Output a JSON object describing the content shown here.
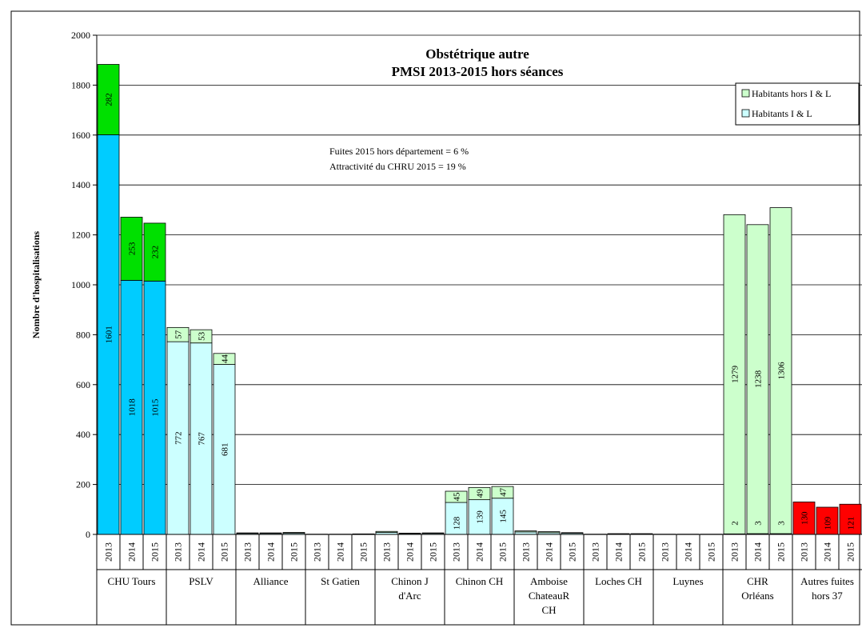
{
  "chart_data": {
    "type": "bar",
    "stacked": true,
    "title_line1": "Obstétrique autre",
    "title_line2": "PMSI 2013-2015 hors séances",
    "ylabel": "Nombre d'hospitalisations",
    "ylim": [
      0,
      2000
    ],
    "yticks": [
      "0",
      "200",
      "400",
      "600",
      "800",
      "1000",
      "1200",
      "1400",
      "1600",
      "1800",
      "2000"
    ],
    "annotation_line1": "Fuites 2015 hors département = 6 %",
    "annotation_line2": "Attractivité du CHRU 2015 = 19 %",
    "legend": [
      {
        "label": "Habitants hors I & L",
        "color": "#ccffcc"
      },
      {
        "label": "Habitants I & L",
        "color": "#ccffff"
      }
    ],
    "years": [
      "2013",
      "2014",
      "2015"
    ],
    "groups": [
      {
        "name_lines": [
          "CHU Tours"
        ],
        "bottom_color": "#00ccff",
        "top_color": "#00e000",
        "bottom": [
          1601,
          1018,
          1015
        ],
        "top": [
          282,
          253,
          232
        ],
        "bottom_labels": [
          "1601",
          "1018",
          "1015"
        ],
        "top_labels": [
          "282",
          "253",
          "232"
        ]
      },
      {
        "name_lines": [
          "PSLV"
        ],
        "bottom_color": "#ccffff",
        "top_color": "#ccffcc",
        "bottom": [
          772,
          767,
          681
        ],
        "top": [
          57,
          53,
          44
        ],
        "bottom_labels": [
          "772",
          "767",
          "681"
        ],
        "top_labels": [
          "57",
          "53",
          "44"
        ]
      },
      {
        "name_lines": [
          "Alliance"
        ],
        "bottom_color": "#ccffff",
        "top_color": "#ccffcc",
        "bottom": [
          4,
          4,
          5
        ],
        "top": [
          2,
          2,
          3
        ],
        "bottom_labels": [
          "",
          "",
          ""
        ],
        "top_labels": [
          "",
          "",
          ""
        ]
      },
      {
        "name_lines": [
          "St Gatien"
        ],
        "bottom_color": "#ccffff",
        "top_color": "#ccffcc",
        "bottom": [
          1,
          1,
          1
        ],
        "top": [
          0,
          0,
          1
        ],
        "bottom_labels": [
          "",
          "",
          ""
        ],
        "top_labels": [
          "",
          "",
          ""
        ]
      },
      {
        "name_lines": [
          "Chinon J",
          "d'Arc"
        ],
        "bottom_color": "#ccffff",
        "top_color": "#ccffcc",
        "bottom": [
          8,
          4,
          4
        ],
        "top": [
          4,
          1,
          2
        ],
        "bottom_labels": [
          "",
          "",
          ""
        ],
        "top_labels": [
          "",
          "",
          ""
        ]
      },
      {
        "name_lines": [
          "Chinon CH"
        ],
        "bottom_color": "#ccffff",
        "top_color": "#ccffcc",
        "bottom": [
          128,
          139,
          145
        ],
        "top": [
          45,
          49,
          47
        ],
        "bottom_labels": [
          "128",
          "139",
          "145"
        ],
        "top_labels": [
          "45",
          "49",
          "47"
        ]
      },
      {
        "name_lines": [
          "Amboise",
          "ChateauR",
          "CH"
        ],
        "bottom_color": "#ccffff",
        "top_color": "#ccffcc",
        "bottom": [
          10,
          7,
          5
        ],
        "top": [
          4,
          4,
          2
        ],
        "bottom_labels": [
          "",
          "",
          ""
        ],
        "top_labels": [
          "",
          "",
          ""
        ]
      },
      {
        "name_lines": [
          "Loches CH"
        ],
        "bottom_color": "#ccffff",
        "top_color": "#ccffcc",
        "bottom": [
          1,
          2,
          2
        ],
        "top": [
          0,
          1,
          1
        ],
        "bottom_labels": [
          "",
          "",
          ""
        ],
        "top_labels": [
          "",
          "",
          ""
        ]
      },
      {
        "name_lines": [
          "Luynes"
        ],
        "bottom_color": "#ccffff",
        "top_color": "#ccffcc",
        "bottom": [
          1,
          1,
          1
        ],
        "top": [
          0,
          0,
          0
        ],
        "bottom_labels": [
          "",
          "",
          ""
        ],
        "top_labels": [
          "",
          "",
          ""
        ]
      },
      {
        "name_lines": [
          "CHR",
          "Orléans"
        ],
        "bottom_color": "#ccffff",
        "top_color": "#ccffcc",
        "bottom": [
          2,
          3,
          3
        ],
        "top": [
          1279,
          1238,
          1306
        ],
        "bottom_labels": [
          "2",
          "3",
          "3"
        ],
        "top_labels": [
          "1279",
          "1238",
          "1306"
        ]
      },
      {
        "name_lines": [
          "Autres fuites",
          "hors 37"
        ],
        "bottom_color": "#ff0000",
        "top_color": "#ff0000",
        "bottom": [
          130,
          109,
          121
        ],
        "top": [
          0,
          0,
          0
        ],
        "bottom_labels": [
          "130",
          "109",
          "121"
        ],
        "top_labels": [
          "",
          "",
          ""
        ]
      }
    ]
  }
}
